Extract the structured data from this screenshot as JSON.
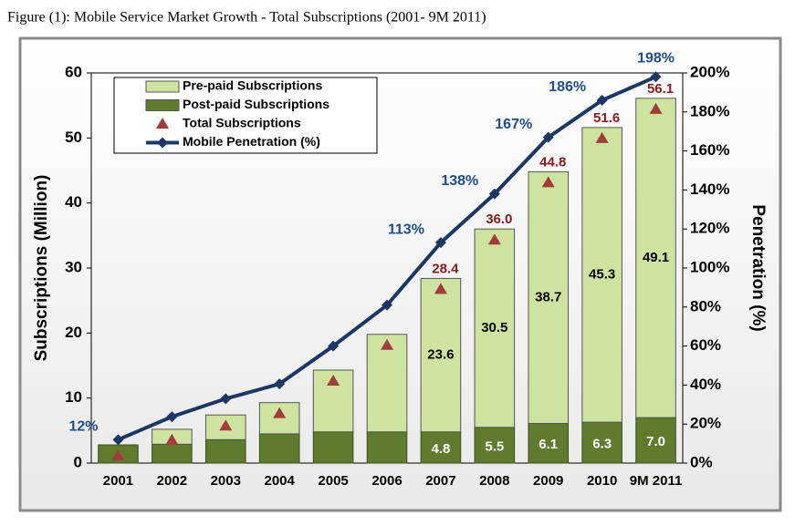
{
  "chart_data": {
    "type": "bar",
    "title": "Figure (1): Mobile Service Market Growth - Total Subscriptions (2001- 9M 2011)",
    "ylabel": "Subscriptions (Million)",
    "y2label": "Penetration (%)",
    "categories": [
      "2001",
      "2002",
      "2003",
      "2004",
      "2005",
      "2006",
      "2007",
      "2008",
      "2009",
      "2010",
      "9M 2011"
    ],
    "series": [
      {
        "name": "Pre-paid Subscriptions",
        "color": "#cfe3a0",
        "values": [
          0.0,
          2.3,
          3.8,
          4.8,
          9.5,
          15.0,
          23.6,
          30.5,
          38.7,
          45.3,
          49.1
        ],
        "value_labels": [
          null,
          null,
          null,
          null,
          null,
          null,
          "23.6",
          "30.5",
          "38.7",
          "45.3",
          "49.1"
        ]
      },
      {
        "name": "Post-paid Subscriptions",
        "color": "#5f7b2e",
        "values": [
          2.8,
          2.9,
          3.6,
          4.5,
          4.8,
          4.8,
          4.8,
          5.5,
          6.1,
          6.3,
          7.0
        ],
        "value_labels": [
          null,
          null,
          null,
          null,
          null,
          null,
          "4.8",
          "5.5",
          "6.1",
          "6.3",
          "7.0"
        ]
      },
      {
        "name": "Total Subscriptions",
        "color": "#a23b3b",
        "values": [
          2.8,
          5.2,
          7.4,
          9.3,
          14.3,
          19.8,
          28.4,
          36.0,
          44.8,
          51.6,
          56.1
        ],
        "value_labels": [
          null,
          null,
          null,
          null,
          null,
          null,
          "28.4",
          "36.0",
          "44.8",
          "51.6",
          "56.1"
        ]
      },
      {
        "name": "Mobile Penetration (%)",
        "color": "#1c3764",
        "axis": "y2",
        "values": [
          12,
          23.8,
          33,
          40.6,
          60,
          81,
          113,
          138,
          167,
          186,
          198
        ],
        "value_labels": [
          "12%",
          null,
          null,
          null,
          null,
          null,
          "113%",
          "138%",
          "167%",
          "186%",
          "198%"
        ]
      }
    ],
    "ylim": [
      0,
      60
    ],
    "yticks": [
      0,
      10,
      20,
      30,
      40,
      50,
      60
    ],
    "y2lim": [
      0,
      200
    ],
    "y2ticks": [
      {
        "value": 0,
        "label": "0%"
      },
      {
        "value": 20,
        "label": "20%"
      },
      {
        "value": 40,
        "label": "40%"
      },
      {
        "value": 60,
        "label": "60%"
      },
      {
        "value": 80,
        "label": "80%"
      },
      {
        "value": 100,
        "label": "100%"
      },
      {
        "value": 120,
        "label": "120%"
      },
      {
        "value": 140,
        "label": "140%"
      },
      {
        "value": 160,
        "label": "160%"
      },
      {
        "value": 180,
        "label": "180%"
      },
      {
        "value": 200,
        "label": "200%"
      }
    ]
  }
}
